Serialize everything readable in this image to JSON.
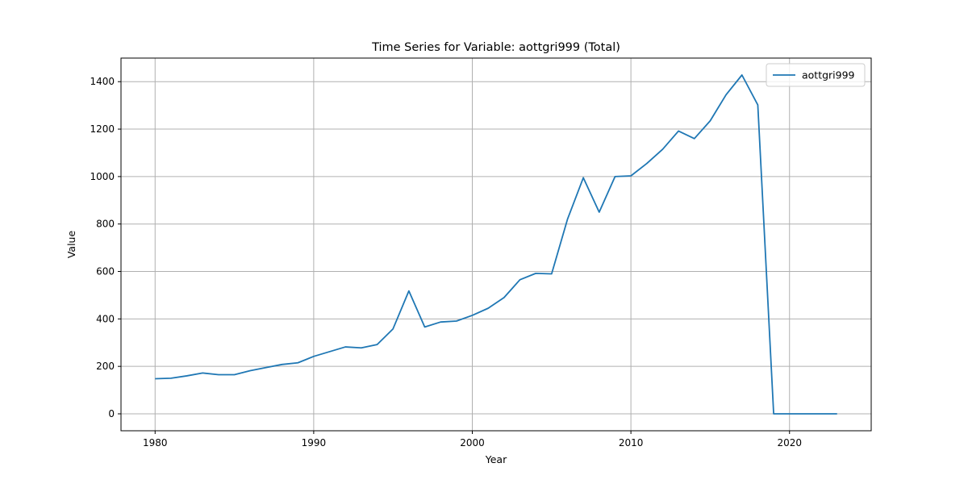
{
  "chart_data": {
    "type": "line",
    "title": "Time Series for Variable: aottgri999 (Total)",
    "xlabel": "Year",
    "ylabel": "Value",
    "xlim": [
      1977.85,
      2025.15
    ],
    "ylim": [
      -71.4,
      1499.4
    ],
    "xticks": [
      1980,
      1990,
      2000,
      2010,
      2020
    ],
    "yticks": [
      0,
      200,
      400,
      600,
      800,
      1000,
      1200,
      1400
    ],
    "grid": true,
    "legend_position": "top-right",
    "series": [
      {
        "name": "aottgri999",
        "color": "#1f77b4",
        "x": [
          1980,
          1981,
          1982,
          1983,
          1984,
          1985,
          1986,
          1987,
          1988,
          1989,
          1990,
          1991,
          1992,
          1993,
          1994,
          1995,
          1996,
          1997,
          1998,
          1999,
          2000,
          2001,
          2002,
          2003,
          2004,
          2005,
          2006,
          2007,
          2008,
          2009,
          2010,
          2011,
          2012,
          2013,
          2014,
          2015,
          2016,
          2017,
          2018,
          2019,
          2020,
          2021,
          2022,
          2023
        ],
        "y": [
          148,
          150,
          160,
          172,
          165,
          165,
          182,
          195,
          208,
          215,
          242,
          262,
          282,
          278,
          292,
          358,
          518,
          366,
          387,
          391,
          415,
          445,
          490,
          565,
          592,
          590,
          820,
          995,
          850,
          1000,
          1003,
          1055,
          1115,
          1192,
          1160,
          1235,
          1345,
          1428,
          1302,
          0,
          0,
          0,
          0,
          0
        ]
      }
    ]
  }
}
